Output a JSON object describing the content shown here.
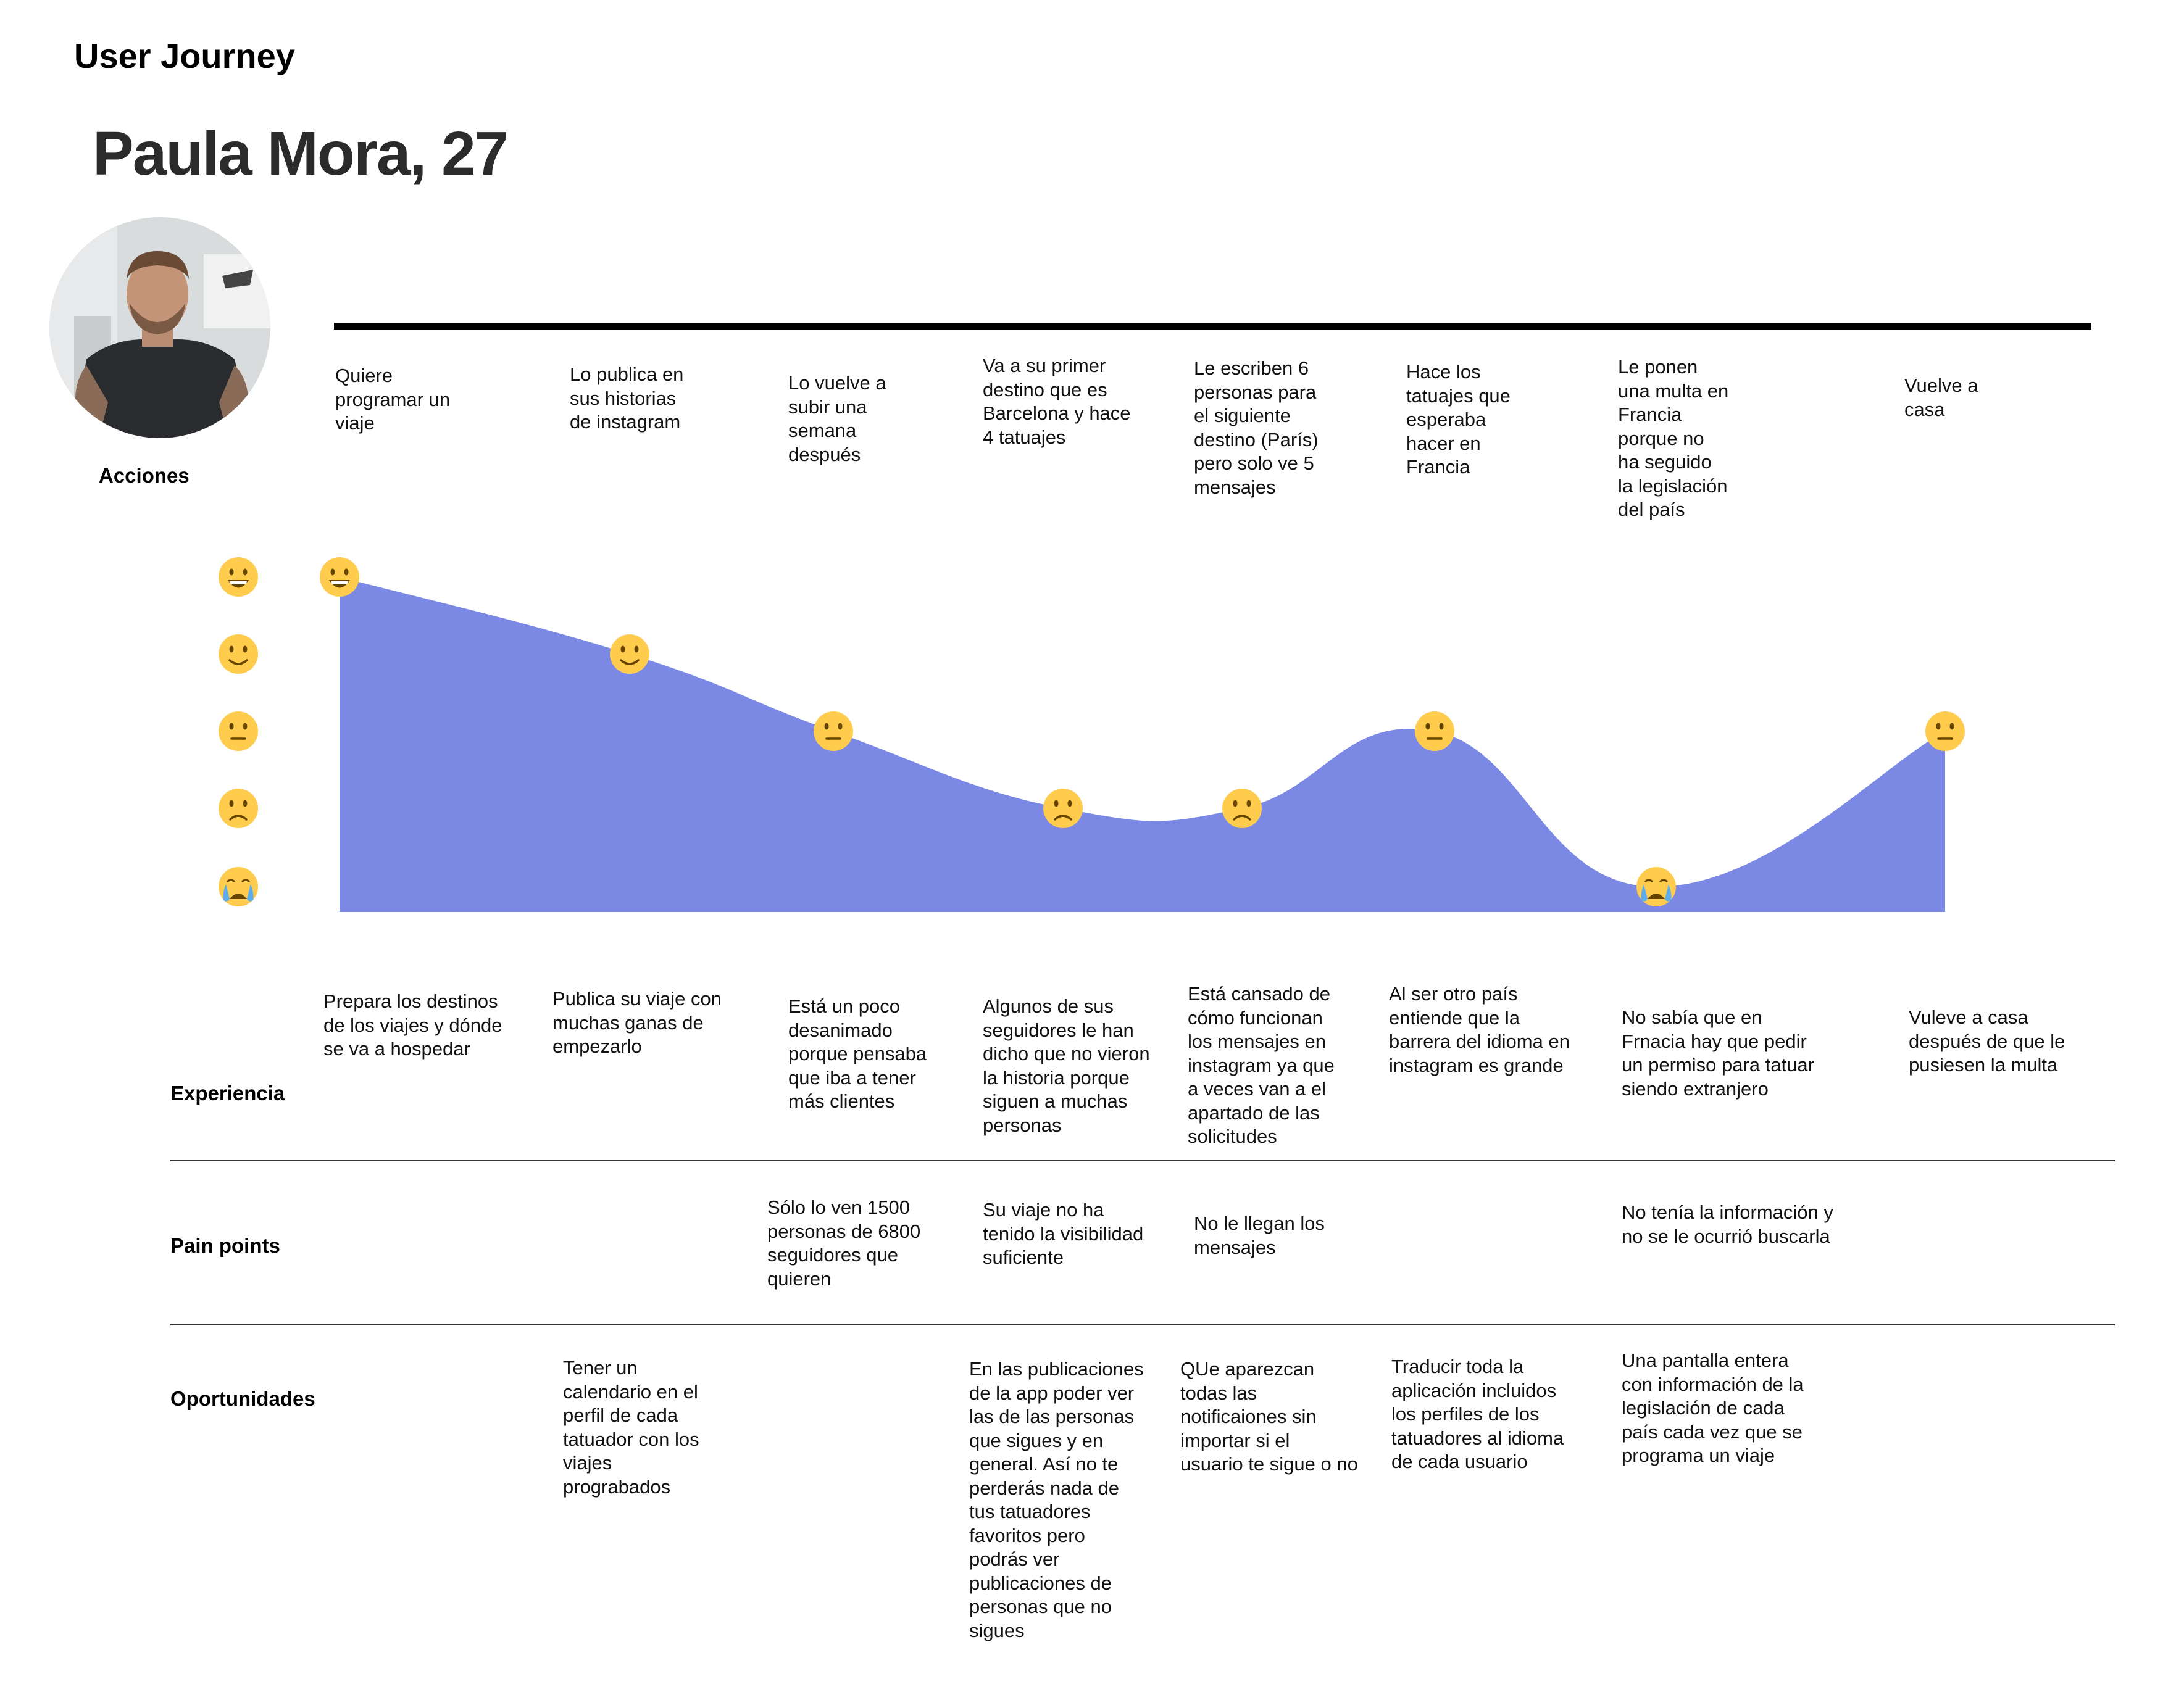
{
  "title": "User Journey",
  "persona": {
    "name": "Paula Mora, 27",
    "avatar_icon": "person-photo"
  },
  "rows": {
    "acciones": "Acciones",
    "experiencia": "Experiencia",
    "pain_points": "Pain points",
    "oportunidades": "Oportunidades"
  },
  "stages": [
    {
      "accion": [
        "Quiere",
        "programar un",
        "viaje"
      ],
      "experiencia": [
        "Prepara los destinos",
        "de los viajes y dónde",
        "se va a hospedar"
      ],
      "pain": [],
      "oportunidad": []
    },
    {
      "accion": [
        "Lo publica en",
        "sus historias",
        "de instagram"
      ],
      "experiencia": [
        "Publica su viaje con",
        "muchas ganas de",
        "empezarlo"
      ],
      "pain": [],
      "oportunidad": [
        "Tener un",
        "calendario en el",
        "perfil de cada",
        "tatuador con los",
        "viajes",
        "prograbados"
      ]
    },
    {
      "accion": [
        "Lo vuelve a",
        "subir una",
        "semana",
        "después"
      ],
      "experiencia": [
        "Está un poco",
        "desanimado",
        "porque pensaba",
        "que iba a tener",
        "más clientes"
      ],
      "pain": [
        "Sólo lo ven 1500",
        "personas de 6800",
        "seguidores que",
        "quieren"
      ],
      "oportunidad": []
    },
    {
      "accion": [
        "Va a su primer",
        "destino que es",
        "Barcelona y hace",
        "4 tatuajes"
      ],
      "experiencia": [
        "Algunos de sus",
        "seguidores le han",
        "dicho que no vieron",
        "la historia porque",
        "siguen a muchas",
        "personas"
      ],
      "pain": [
        "Su viaje no ha",
        "tenido la visibilidad",
        "suficiente"
      ],
      "oportunidad": [
        "En las publicaciones",
        "de la app poder ver",
        "las de las personas",
        "que sigues y en",
        "general. Así no te",
        "perderás nada de",
        "tus tatuadores",
        "favoritos pero",
        "podrás ver",
        "publicaciones de",
        "personas que no",
        "sigues"
      ]
    },
    {
      "accion": [
        "Le escriben 6",
        "personas para",
        "el siguiente",
        "destino (París)",
        "pero solo ve 5",
        "mensajes"
      ],
      "experiencia": [
        "Está cansado de",
        "cómo funcionan",
        "los mensajes en",
        "instagram ya que",
        "a veces van a el",
        "apartado de las",
        "solicitudes"
      ],
      "pain": [
        "No le llegan los",
        "mensajes"
      ],
      "oportunidad": [
        "QUe aparezcan",
        "todas las",
        "notificaiones sin",
        "importar si el",
        "usuario te sigue o no"
      ]
    },
    {
      "accion": [
        "Hace los",
        "tatuajes que",
        "esperaba",
        "hacer en",
        "Francia"
      ],
      "experiencia": [
        "Al ser otro país",
        "entiende que la",
        "barrera del idioma en",
        "instagram es grande"
      ],
      "pain": [],
      "oportunidad": [
        "Traducir toda la",
        "aplicación incluidos",
        "los perfiles de los",
        "tatuadores al idioma",
        "de cada usuario"
      ]
    },
    {
      "accion": [
        "Le ponen",
        "una multa en",
        "Francia",
        "porque no",
        "ha seguido",
        "la legislación",
        "del país"
      ],
      "experiencia": [
        "No sabía que en",
        "Frnacia hay que pedir",
        "un permiso para tatuar",
        "siendo extranjero"
      ],
      "pain": [
        "No tenía la información y",
        "no se le ocurrió buscarla"
      ],
      "oportunidad": [
        "Una pantalla entera",
        "con información de la",
        "legislación de cada",
        "país cada vez que se",
        "programa un viaje"
      ]
    },
    {
      "accion": [
        "Vuelve a",
        "casa"
      ],
      "experiencia": [
        "Vuleve a casa",
        "después de que le",
        "pusiesen la multa"
      ],
      "pain": [],
      "oportunidad": []
    }
  ],
  "scale": {
    "levels": [
      "grinning",
      "smiling",
      "neutral",
      "frowning",
      "crying"
    ],
    "icons": [
      "grinning-face-icon",
      "slightly-smiling-face-icon",
      "neutral-face-icon",
      "frowning-face-icon",
      "crying-face-icon"
    ]
  },
  "emotions": [
    "grinning",
    "smiling",
    "neutral",
    "frowning",
    "frowning",
    "neutral",
    "crying",
    "neutral"
  ],
  "colors": {
    "curve_fill": "#7b89e4",
    "face_yellow": "#ffcc4d",
    "face_dark": "#664500",
    "tear_blue": "#5dadec",
    "divider": "#333333"
  }
}
